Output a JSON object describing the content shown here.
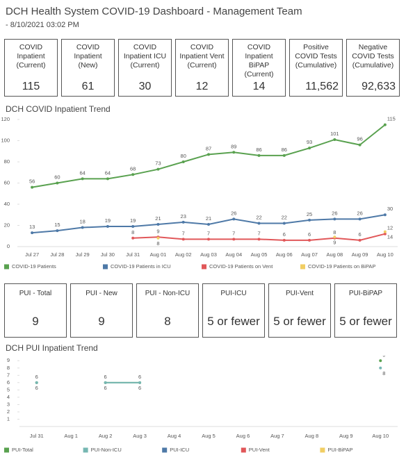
{
  "header": {
    "title": "DCH Health System COVID-19 Dashboard - Management Team",
    "subtitle": "- 8/10/2021 03:02 PM"
  },
  "kpis": [
    {
      "label": "COVID Inpatient (Current)",
      "value": "115"
    },
    {
      "label": "COVID Inpatient (New)",
      "value": "61"
    },
    {
      "label": "COVID Inpatient ICU (Current)",
      "value": "30"
    },
    {
      "label": "COVID Inpatient Vent (Current)",
      "value": "12"
    },
    {
      "label": "COVID Inpatient BiPAP (Current)",
      "value": "14"
    },
    {
      "label": "Positive COVID Tests (Cumulative)",
      "value": "11,562"
    },
    {
      "label": "Negative COVID Tests (Cumulative)",
      "value": "92,633"
    }
  ],
  "pui": [
    {
      "label": "PUI - Total",
      "value": "9"
    },
    {
      "label": "PUI - New",
      "value": "9"
    },
    {
      "label": "PUI - Non-ICU",
      "value": "8"
    },
    {
      "label": "PUI-ICU",
      "value": "5 or fewer"
    },
    {
      "label": "PUI-Vent",
      "value": "5 or fewer"
    },
    {
      "label": "PUI-BiPAP",
      "value": "5 or fewer"
    }
  ],
  "chart_data": [
    {
      "type": "line",
      "title": "DCH COVID Inpatient Trend",
      "categories": [
        "Jul 27",
        "Jul 28",
        "Jul 29",
        "Jul 30",
        "Jul 31",
        "Aug 01",
        "Aug 02",
        "Aug 03",
        "Aug 04",
        "Aug 05",
        "Aug 06",
        "Aug 07",
        "Aug 08",
        "Aug 09",
        "Aug 10"
      ],
      "series": [
        {
          "name": "COVID-19 Patients",
          "color": "#59a14f",
          "values": [
            56,
            60,
            64,
            64,
            68,
            73,
            80,
            87,
            89,
            86,
            86,
            93,
            101,
            96,
            115
          ]
        },
        {
          "name": "COVID-19 Patients in ICU",
          "color": "#4e79a7",
          "values": [
            13,
            15,
            18,
            19,
            19,
            21,
            23,
            21,
            26,
            22,
            22,
            25,
            26,
            26,
            30
          ]
        },
        {
          "name": "COVID-19 Patients on Vent",
          "color": "#e15759",
          "values": [
            null,
            null,
            null,
            null,
            8,
            9,
            7,
            7,
            7,
            7,
            6,
            6,
            8,
            6,
            12
          ]
        },
        {
          "name": "COVID-19 Patients on BiPAP",
          "color": "#f1ce63",
          "values": [
            null,
            null,
            null,
            null,
            null,
            8,
            null,
            null,
            null,
            null,
            null,
            null,
            9,
            null,
            14
          ]
        }
      ],
      "ylim": [
        0,
        120
      ],
      "yticks": [
        0,
        20,
        40,
        60,
        80,
        100,
        120
      ],
      "grid": false,
      "legend": "bottom"
    },
    {
      "type": "line",
      "title": "DCH PUI Inpatient Trend",
      "categories": [
        "Jul 31",
        "Aug 1",
        "Aug 2",
        "Aug 3",
        "Aug 4",
        "Aug 5",
        "Aug 6",
        "Aug 7",
        "Aug 8",
        "Aug 9",
        "Aug 10"
      ],
      "series": [
        {
          "name": "PUI-Total",
          "color": "#59a14f",
          "values": [
            6,
            null,
            6,
            6,
            null,
            null,
            null,
            null,
            null,
            null,
            9
          ]
        },
        {
          "name": "PUI-Non-ICU",
          "color": "#76b7b2",
          "values": [
            6,
            null,
            6,
            6,
            null,
            null,
            null,
            null,
            null,
            null,
            8
          ]
        },
        {
          "name": "PUI-ICU",
          "color": "#4e79a7",
          "values": [
            null,
            null,
            null,
            null,
            null,
            null,
            null,
            null,
            null,
            null,
            null
          ]
        },
        {
          "name": "PUI-Vent",
          "color": "#e15759",
          "values": [
            null,
            null,
            null,
            null,
            null,
            null,
            null,
            null,
            null,
            null,
            null
          ]
        },
        {
          "name": "PUI-BiPAP",
          "color": "#f1ce63",
          "values": [
            null,
            null,
            null,
            null,
            null,
            null,
            null,
            null,
            null,
            null,
            null
          ]
        }
      ],
      "ylim": [
        0,
        9.5
      ],
      "yticks": [
        1,
        2,
        3,
        4,
        5,
        6,
        7,
        8,
        9
      ],
      "grid": false,
      "legend": "bottom"
    }
  ]
}
